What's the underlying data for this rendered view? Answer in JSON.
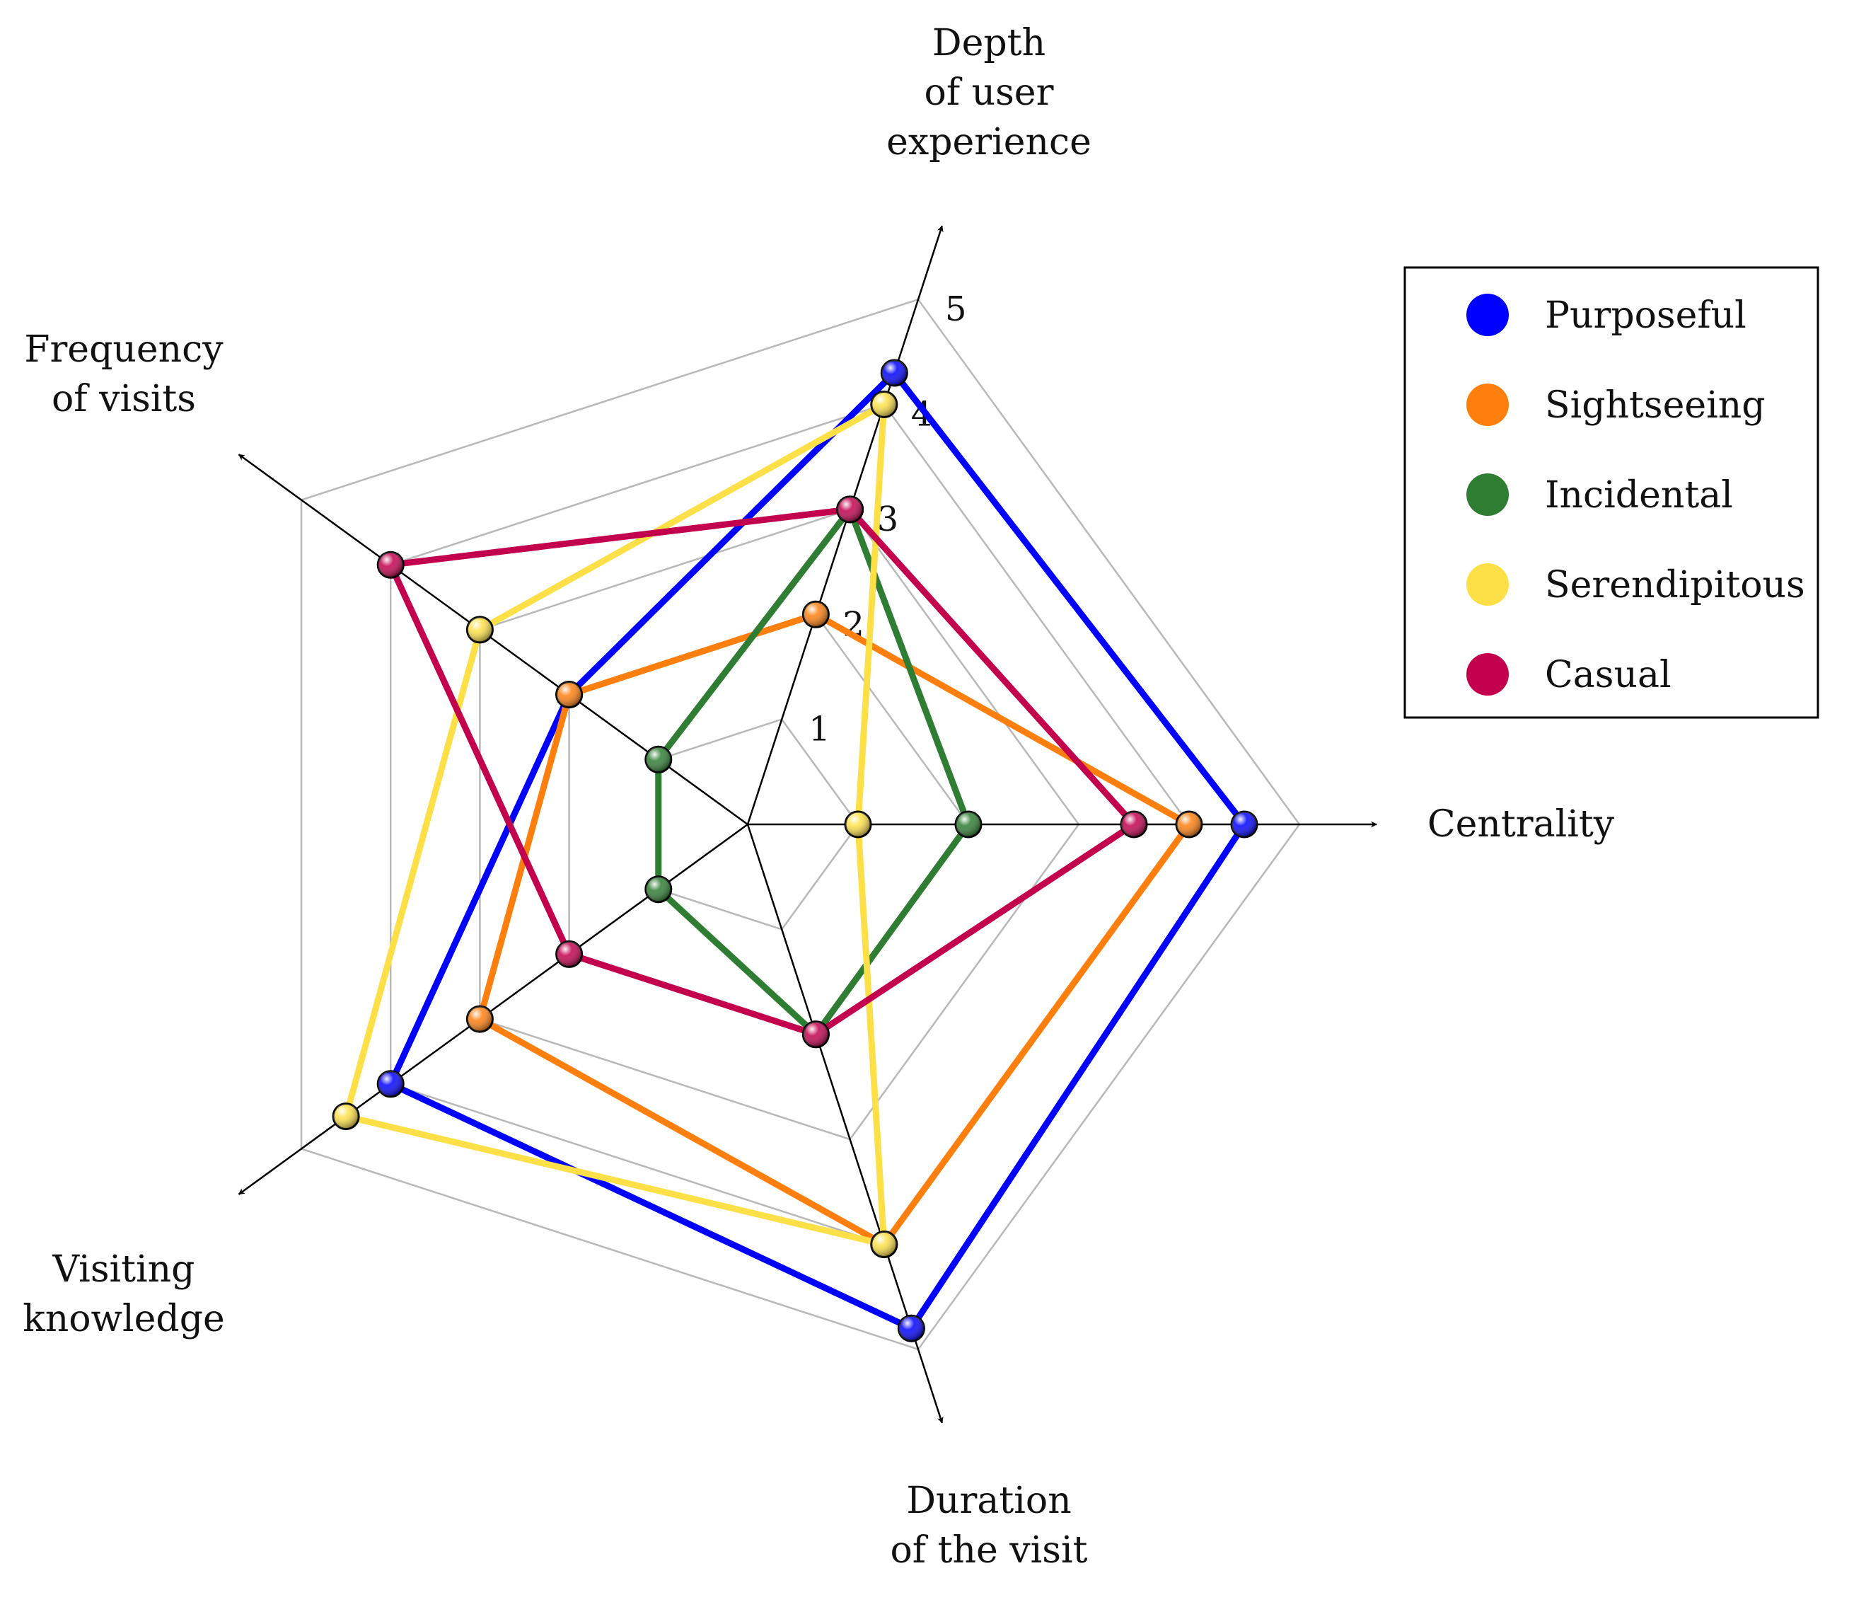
{
  "chart_data": {
    "type": "radar",
    "title": "",
    "axes": [
      {
        "key": "centrality",
        "lines": [
          "Centrality"
        ]
      },
      {
        "key": "duration",
        "lines": [
          "Duration",
          "of the visit"
        ]
      },
      {
        "key": "knowledge",
        "lines": [
          "Visiting",
          "knowledge"
        ]
      },
      {
        "key": "frequency",
        "lines": [
          "Frequency",
          "of visits"
        ]
      },
      {
        "key": "depth",
        "lines": [
          "Depth",
          "of user",
          "experience"
        ]
      }
    ],
    "scale": {
      "min": 0,
      "max": 5,
      "ticks": [
        "1",
        "2",
        "3",
        "4",
        "5"
      ]
    },
    "grid": true,
    "legend_position": "top-right",
    "series": [
      {
        "name": "Purposeful",
        "color": "#0000ff",
        "values": [
          4.5,
          4.8,
          4.0,
          2.0,
          4.3
        ]
      },
      {
        "name": "Sightseeing",
        "color": "#ff7f0e",
        "values": [
          4.0,
          4.0,
          3.0,
          2.0,
          2.0
        ]
      },
      {
        "name": "Incidental",
        "color": "#2e7d32",
        "values": [
          2.0,
          2.0,
          1.0,
          1.0,
          3.0
        ]
      },
      {
        "name": "Serendipitous",
        "color": "#fde047",
        "values": [
          1.0,
          4.0,
          4.5,
          3.0,
          4.0
        ]
      },
      {
        "name": "Casual",
        "color": "#c2004d",
        "values": [
          3.5,
          2.0,
          2.0,
          4.0,
          3.0
        ]
      }
    ]
  }
}
